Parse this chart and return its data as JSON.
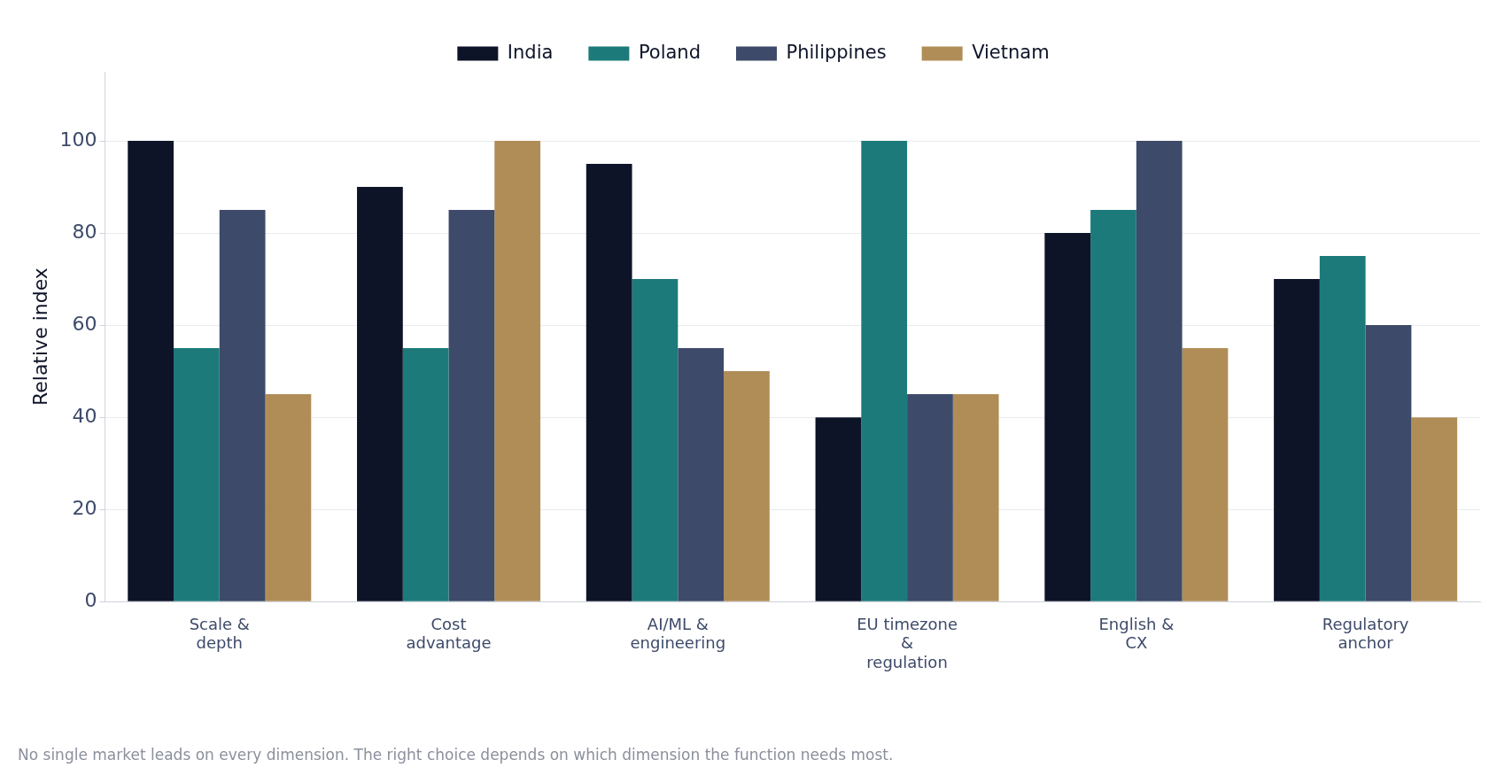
{
  "chart_data": {
    "type": "bar",
    "categories": [
      "Scale & depth",
      "Cost advantage",
      "AI/ML & engineering",
      "EU timezone & regulation",
      "English & CX",
      "Regulatory anchor"
    ],
    "series": [
      {
        "name": "India",
        "color": "#0e1428",
        "values": [
          100,
          90,
          95,
          40,
          80,
          70
        ]
      },
      {
        "name": "Poland",
        "color": "#1d7a7a",
        "values": [
          55,
          55,
          70,
          100,
          85,
          75
        ]
      },
      {
        "name": "Philippines",
        "color": "#3d4a69",
        "values": [
          85,
          85,
          55,
          45,
          100,
          60
        ]
      },
      {
        "name": "Vietnam",
        "color": "#b08d57",
        "values": [
          45,
          100,
          50,
          45,
          55,
          40
        ]
      }
    ],
    "ylabel": "Relative index",
    "ylim": [
      0,
      115
    ],
    "yticks": [
      0,
      20,
      40,
      60,
      80,
      100
    ],
    "grid": "y",
    "legend": "top",
    "annotations": [
      "No single market leads on every dimension. The right choice depends on which dimension the function needs most."
    ]
  }
}
